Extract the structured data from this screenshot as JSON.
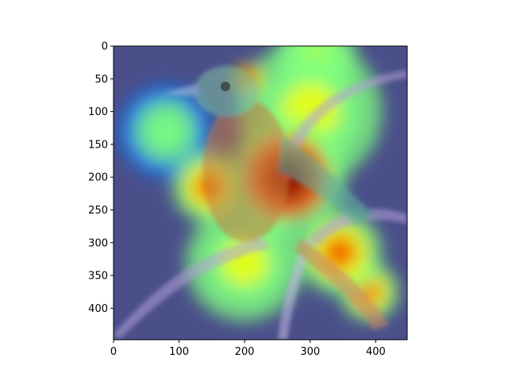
{
  "chart_data": {
    "type": "heatmap",
    "title": "",
    "xlabel": "",
    "ylabel": "",
    "xlim": [
      0,
      448
    ],
    "ylim": [
      448,
      0
    ],
    "x_ticks": [
      "0",
      "100",
      "200",
      "300",
      "400"
    ],
    "y_ticks": [
      "0",
      "50",
      "100",
      "150",
      "200",
      "250",
      "300",
      "350",
      "400"
    ],
    "grid": false,
    "legend": "none",
    "colormap": "jet",
    "base_image": "bird perched on a branch (overlay)",
    "heat_regions": [
      {
        "cx": 205,
        "cy": 50,
        "r": 22,
        "level": 1.0
      },
      {
        "cx": 265,
        "cy": 200,
        "r": 90,
        "level": 0.95
      },
      {
        "cx": 145,
        "cy": 215,
        "r": 55,
        "level": 0.85
      },
      {
        "cx": 345,
        "cy": 315,
        "r": 65,
        "level": 0.9
      },
      {
        "cx": 390,
        "cy": 375,
        "r": 45,
        "level": 0.8
      },
      {
        "cx": 300,
        "cy": 100,
        "r": 110,
        "level": 0.55
      },
      {
        "cx": 200,
        "cy": 330,
        "r": 90,
        "level": 0.5
      },
      {
        "cx": 80,
        "cy": 130,
        "r": 70,
        "level": 0.35
      },
      {
        "cx": 310,
        "cy": 10,
        "r": 60,
        "level": 0.45
      }
    ],
    "colors": {
      "low": "#00007f",
      "mid_low": "#0080ff",
      "mid": "#7fff7f",
      "mid_high": "#ffff00",
      "high": "#ff4000",
      "peak": "#800000"
    }
  }
}
